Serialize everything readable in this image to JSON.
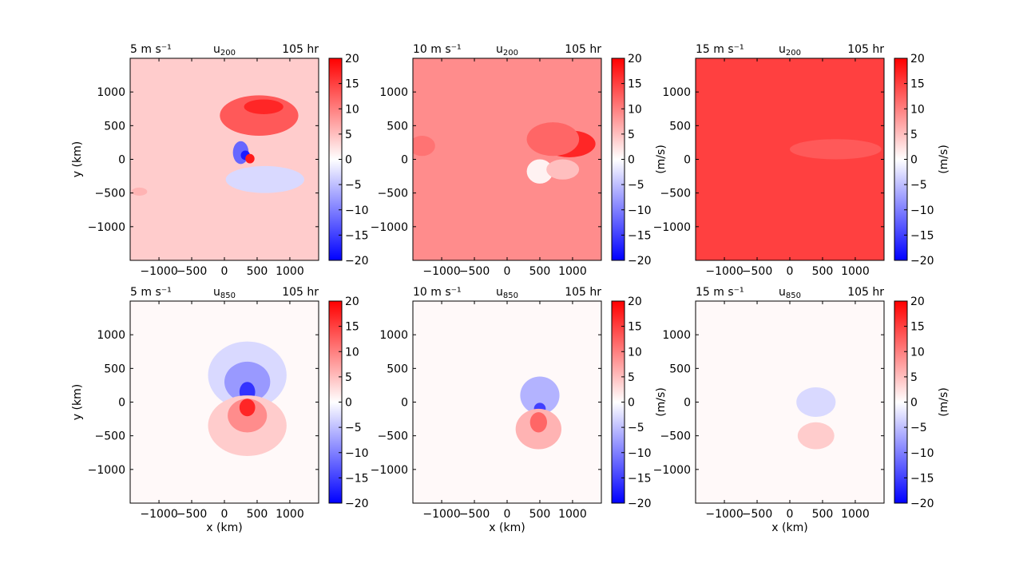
{
  "chart_data": [
    {
      "type": "heatmap",
      "row": "top",
      "col": 0,
      "label_left": "5 m s⁻¹",
      "label_center": "u",
      "label_sub": "200",
      "label_right": "105 hr",
      "xlabel": "",
      "ylabel": "y (km)",
      "cbar_label": "",
      "xticks": [
        -1000,
        -500,
        0,
        500,
        1000
      ],
      "yticks": [
        -1000,
        -500,
        0,
        500,
        1000
      ],
      "xlim": [
        -1440,
        1440
      ],
      "ylim": [
        -1500,
        1500
      ],
      "cbar_ticks": [
        -20,
        -15,
        -10,
        -5,
        0,
        5,
        10,
        15,
        20
      ],
      "vlim": [
        -20,
        20
      ],
      "background": 4,
      "features": [
        {
          "x": 530,
          "y": 650,
          "rx": 600,
          "ry": 300,
          "v": 13
        },
        {
          "x": 600,
          "y": 780,
          "rx": 300,
          "ry": 110,
          "v": 17
        },
        {
          "x": 620,
          "y": -300,
          "rx": 600,
          "ry": 200,
          "v": -3
        },
        {
          "x": 250,
          "y": 100,
          "rx": 120,
          "ry": 170,
          "v": -12
        },
        {
          "x": 320,
          "y": 60,
          "rx": 70,
          "ry": 70,
          "v": -18
        },
        {
          "x": 390,
          "y": 10,
          "rx": 70,
          "ry": 70,
          "v": 18
        },
        {
          "x": -1300,
          "y": -480,
          "rx": 120,
          "ry": 60,
          "v": 6
        }
      ]
    },
    {
      "type": "heatmap",
      "row": "top",
      "col": 1,
      "label_left": "10 m s⁻¹",
      "label_center": "u",
      "label_sub": "200",
      "label_right": "105 hr",
      "xlabel": "",
      "ylabel": "",
      "cbar_label": "(m/s)",
      "xticks": [
        -1000,
        -500,
        0,
        500,
        1000
      ],
      "yticks": [
        -1000,
        -500,
        0,
        500,
        1000
      ],
      "xlim": [
        -1440,
        1440
      ],
      "ylim": [
        -1500,
        1500
      ],
      "cbar_ticks": [
        -20,
        -15,
        -10,
        -5,
        0,
        5,
        10,
        15,
        20
      ],
      "vlim": [
        -20,
        20
      ],
      "background": 9,
      "features": [
        {
          "x": 950,
          "y": 230,
          "rx": 400,
          "ry": 200,
          "v": 17
        },
        {
          "x": 700,
          "y": 300,
          "rx": 400,
          "ry": 250,
          "v": 12
        },
        {
          "x": 500,
          "y": -180,
          "rx": 200,
          "ry": 180,
          "v": 1
        },
        {
          "x": 850,
          "y": -150,
          "rx": 250,
          "ry": 150,
          "v": 5
        },
        {
          "x": -1300,
          "y": 200,
          "rx": 200,
          "ry": 150,
          "v": 11
        }
      ]
    },
    {
      "type": "heatmap",
      "row": "top",
      "col": 2,
      "label_left": "15 m s⁻¹",
      "label_center": "u",
      "label_sub": "200",
      "label_right": "105 hr",
      "xlabel": "",
      "ylabel": "",
      "cbar_label": "(m/s)",
      "xticks": [
        -1000,
        -500,
        0,
        500,
        1000
      ],
      "yticks": [
        -1000,
        -500,
        0,
        500,
        1000
      ],
      "xlim": [
        -1440,
        1440
      ],
      "ylim": [
        -1500,
        1500
      ],
      "cbar_ticks": [
        -20,
        -15,
        -10,
        -5,
        0,
        5,
        10,
        15,
        20
      ],
      "vlim": [
        -20,
        20
      ],
      "background": 15,
      "features": [
        {
          "x": 700,
          "y": 150,
          "rx": 700,
          "ry": 150,
          "v": 13
        }
      ]
    },
    {
      "type": "heatmap",
      "row": "bottom",
      "col": 0,
      "label_left": "5 m s⁻¹",
      "label_center": "u",
      "label_sub": "850",
      "label_right": "105 hr",
      "xlabel": "x (km)",
      "ylabel": "y (km)",
      "cbar_label": "",
      "xticks": [
        -1000,
        -500,
        0,
        500,
        1000
      ],
      "yticks": [
        -1000,
        -500,
        0,
        500,
        1000
      ],
      "xlim": [
        -1440,
        1440
      ],
      "ylim": [
        -1500,
        1500
      ],
      "cbar_ticks": [
        -20,
        -15,
        -10,
        -5,
        0,
        5,
        10,
        15,
        20
      ],
      "vlim": [
        -20,
        20
      ],
      "background": 0.5,
      "features": [
        {
          "x": 350,
          "y": 400,
          "rx": 600,
          "ry": 500,
          "v": -3
        },
        {
          "x": 350,
          "y": 300,
          "rx": 350,
          "ry": 300,
          "v": -8
        },
        {
          "x": 350,
          "y": 150,
          "rx": 120,
          "ry": 150,
          "v": -16
        },
        {
          "x": 350,
          "y": -350,
          "rx": 600,
          "ry": 450,
          "v": 4
        },
        {
          "x": 350,
          "y": -200,
          "rx": 300,
          "ry": 250,
          "v": 9
        },
        {
          "x": 350,
          "y": -80,
          "rx": 120,
          "ry": 130,
          "v": 17
        }
      ]
    },
    {
      "type": "heatmap",
      "row": "bottom",
      "col": 1,
      "label_left": "10 m s⁻¹",
      "label_center": "u",
      "label_sub": "850",
      "label_right": "105 hr",
      "xlabel": "x (km)",
      "ylabel": "",
      "cbar_label": "(m/s)",
      "xticks": [
        -1000,
        -500,
        0,
        500,
        1000
      ],
      "yticks": [
        -1000,
        -500,
        0,
        500,
        1000
      ],
      "xlim": [
        -1440,
        1440
      ],
      "ylim": [
        -1500,
        1500
      ],
      "cbar_ticks": [
        -20,
        -15,
        -10,
        -5,
        0,
        5,
        10,
        15,
        20
      ],
      "vlim": [
        -20,
        20
      ],
      "background": 0.5,
      "features": [
        {
          "x": 500,
          "y": 100,
          "rx": 300,
          "ry": 280,
          "v": -6
        },
        {
          "x": 500,
          "y": -100,
          "rx": 90,
          "ry": 90,
          "v": -15
        },
        {
          "x": 480,
          "y": -400,
          "rx": 350,
          "ry": 300,
          "v": 6
        },
        {
          "x": 480,
          "y": -300,
          "rx": 130,
          "ry": 150,
          "v": 12
        }
      ]
    },
    {
      "type": "heatmap",
      "row": "bottom",
      "col": 2,
      "label_left": "15 m s⁻¹",
      "label_center": "u",
      "label_sub": "850",
      "label_right": "105 hr",
      "xlabel": "x (km)",
      "ylabel": "",
      "cbar_label": "(m/s)",
      "xticks": [
        -1000,
        -500,
        0,
        500,
        1000
      ],
      "yticks": [
        -1000,
        -500,
        0,
        500,
        1000
      ],
      "xlim": [
        -1440,
        1440
      ],
      "ylim": [
        -1500,
        1500
      ],
      "cbar_ticks": [
        -20,
        -15,
        -10,
        -5,
        0,
        5,
        10,
        15,
        20
      ],
      "vlim": [
        -20,
        20
      ],
      "background": 0.5,
      "features": [
        {
          "x": 400,
          "y": 0,
          "rx": 300,
          "ry": 220,
          "v": -3
        },
        {
          "x": 400,
          "y": -500,
          "rx": 280,
          "ry": 200,
          "v": 4
        }
      ]
    }
  ],
  "colors": {
    "min": "#0000ff",
    "mid": "#ffffff",
    "max": "#ff0000"
  }
}
